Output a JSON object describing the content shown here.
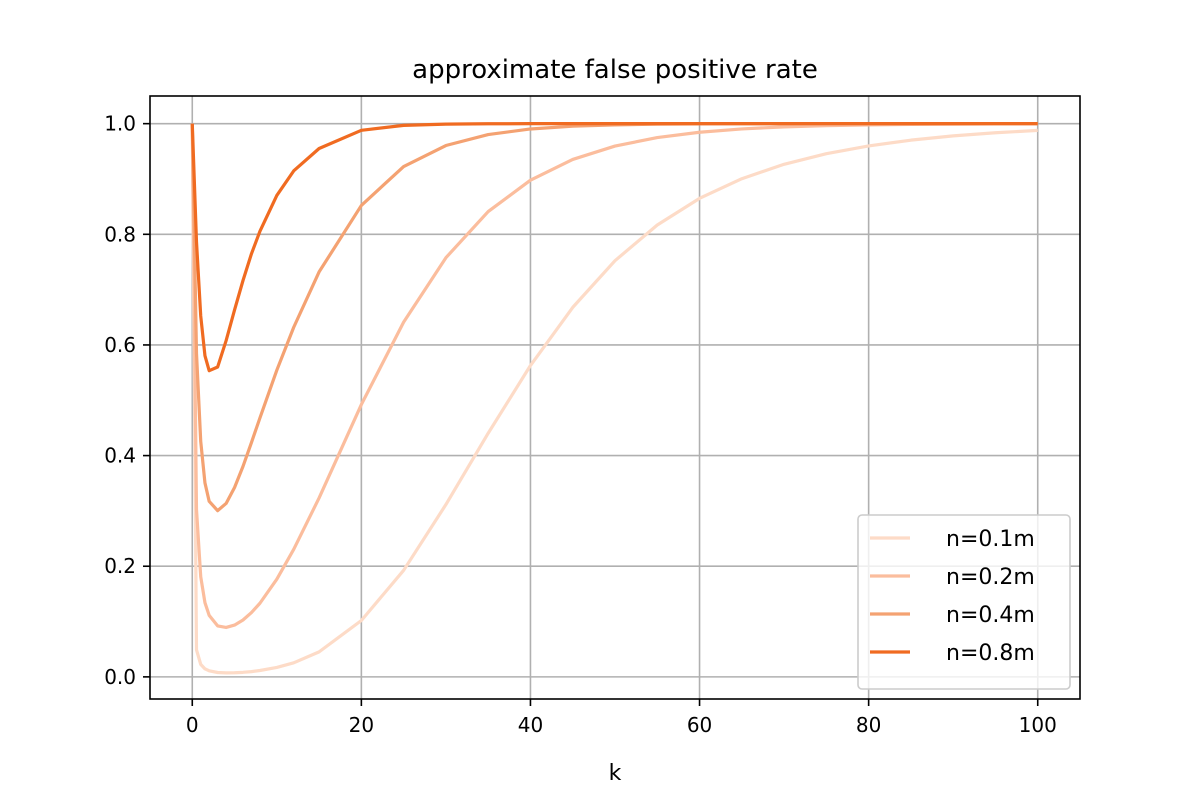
{
  "chart_data": {
    "type": "line",
    "title": "approximate false positive rate",
    "xlabel": "k",
    "ylabel": "",
    "xlim": [
      -5,
      105
    ],
    "ylim": [
      -0.04,
      1.05
    ],
    "xticks": [
      0,
      20,
      40,
      60,
      80,
      100
    ],
    "xtick_labels": [
      "0",
      "20",
      "40",
      "60",
      "80",
      "100"
    ],
    "yticks": [
      0.0,
      0.2,
      0.4,
      0.6,
      0.8,
      1.0
    ],
    "ytick_labels": [
      "0.0",
      "0.2",
      "0.4",
      "0.6",
      "0.8",
      "1.0"
    ],
    "grid": true,
    "legend_position": "lower right",
    "x": [
      0,
      0.5,
      1,
      1.5,
      2,
      3,
      4,
      5,
      6,
      7,
      8,
      10,
      12,
      15,
      20,
      25,
      30,
      35,
      40,
      45,
      50,
      55,
      60,
      65,
      70,
      75,
      80,
      85,
      90,
      95,
      100
    ],
    "series": [
      {
        "name": "n=0.1m",
        "color": "#fddbc7",
        "values": [
          1.0,
          0.0488,
          0.0226,
          0.0145,
          0.0109,
          0.0079,
          0.0072,
          0.0074,
          0.0082,
          0.0095,
          0.0115,
          0.0171,
          0.0254,
          0.0452,
          0.1019,
          0.1926,
          0.3115,
          0.4404,
          0.5628,
          0.6679,
          0.7523,
          0.8168,
          0.865,
          0.9005,
          0.9266,
          0.9457,
          0.9598,
          0.9702,
          0.9779,
          0.9836,
          0.9878
        ]
      },
      {
        "name": "n=0.2m",
        "color": "#fbbd9d",
        "values": [
          1.0,
          0.3023,
          0.181,
          0.1341,
          0.1112,
          0.0921,
          0.0893,
          0.0936,
          0.1028,
          0.1162,
          0.1331,
          0.1766,
          0.2306,
          0.3234,
          0.4923,
          0.6412,
          0.7577,
          0.8411,
          0.8978,
          0.9353,
          0.9595,
          0.9749,
          0.9845,
          0.9905,
          0.9942,
          0.9964,
          0.9978,
          0.9987,
          0.9992,
          0.9995,
          0.9997
        ]
      },
      {
        "name": "n=0.4m",
        "color": "#f4a272",
        "values": [
          1.0,
          0.5849,
          0.4256,
          0.3506,
          0.3173,
          0.3005,
          0.3135,
          0.3423,
          0.3805,
          0.4236,
          0.468,
          0.5544,
          0.632,
          0.732,
          0.8522,
          0.9225,
          0.9605,
          0.9803,
          0.9904,
          0.9954,
          0.9978,
          0.999,
          0.9995,
          0.9998,
          0.9999,
          1.0,
          1.0,
          1.0,
          1.0,
          1.0,
          1.0
        ]
      },
      {
        "name": "n=0.8m",
        "color": "#f06b21",
        "values": [
          1.0,
          0.7864,
          0.6523,
          0.5806,
          0.5534,
          0.5601,
          0.6077,
          0.6632,
          0.7165,
          0.7648,
          0.8054,
          0.8703,
          0.9147,
          0.9551,
          0.988,
          0.9969,
          0.9992,
          0.9998,
          1.0,
          1.0,
          1.0,
          1.0,
          1.0,
          1.0,
          1.0,
          1.0,
          1.0,
          1.0,
          1.0,
          1.0,
          1.0
        ]
      }
    ]
  }
}
